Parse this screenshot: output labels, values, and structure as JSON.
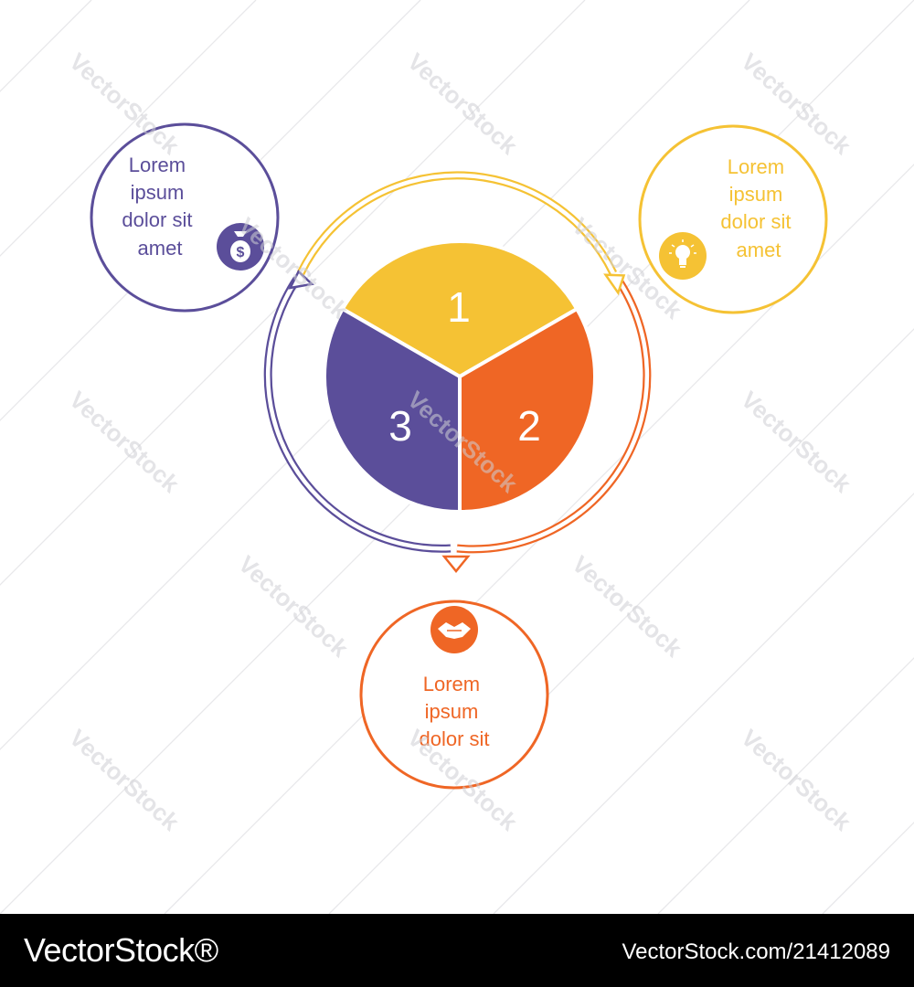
{
  "colors": {
    "yellow": "#F5C234",
    "orange": "#EF6625",
    "purple": "#5B4E9A",
    "background": "#FFFFFF",
    "footer_bg": "#000000",
    "footer_text": "#FFFFFF"
  },
  "segments": [
    {
      "number": "1",
      "color": "yellow"
    },
    {
      "number": "2",
      "color": "orange"
    },
    {
      "number": "3",
      "color": "purple"
    }
  ],
  "bubbles": {
    "purple": {
      "lines": [
        "Lorem",
        "ipsum",
        "dolor sit",
        "amet"
      ],
      "icon": "money-bag-icon"
    },
    "yellow": {
      "lines": [
        "Lorem",
        "ipsum",
        "dolor sit",
        "amet"
      ],
      "icon": "light-bulb-icon"
    },
    "orange": {
      "lines": [
        "Lorem",
        "ipsum",
        "dolor sit"
      ],
      "icon": "handshake-icon"
    }
  },
  "watermark": "VectorStock",
  "footer": {
    "brand": "VectorStock®",
    "image_id": "VectorStock.com/21412089"
  }
}
